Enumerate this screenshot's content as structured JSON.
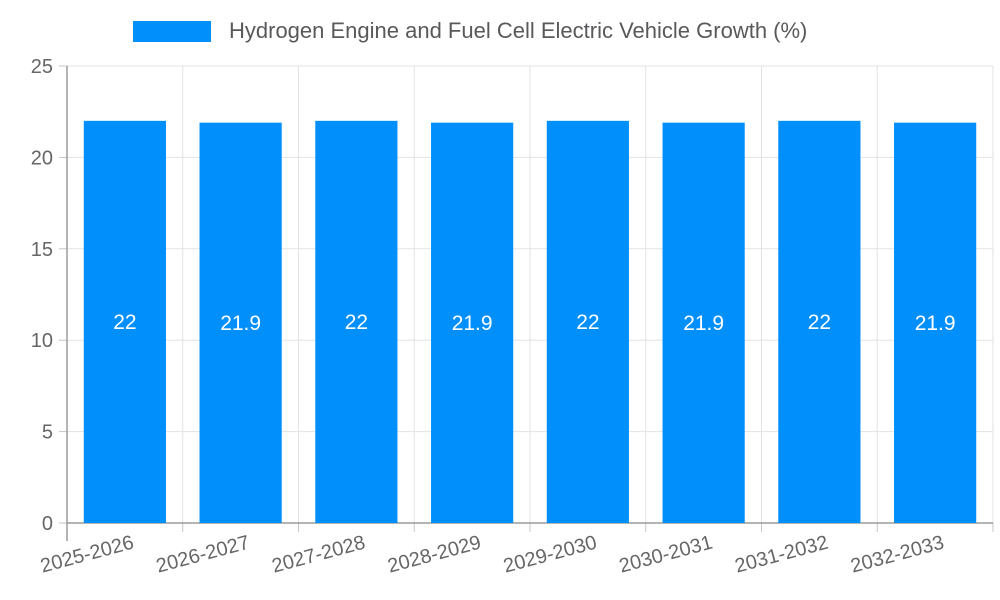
{
  "legend": {
    "label": "Hydrogen Engine and Fuel Cell Electric Vehicle Growth (%)",
    "swatch_color": "#008FFB",
    "position": "top"
  },
  "chart_data": {
    "type": "bar",
    "title": "Hydrogen Engine and Fuel Cell Electric Vehicle Growth (%)",
    "categories": [
      "2025-2026",
      "2026-2027",
      "2027-2028",
      "2028-2029",
      "2029-2030",
      "2030-2031",
      "2031-2032",
      "2032-2033"
    ],
    "series": [
      {
        "name": "Hydrogen Engine and Fuel Cell Electric Vehicle Growth (%)",
        "values": [
          22,
          21.9,
          22,
          21.9,
          22,
          21.9,
          22,
          21.9
        ],
        "color": "#008FFB"
      }
    ],
    "data_labels": {
      "enabled": true,
      "values": [
        "22",
        "21.9",
        "22",
        "21.9",
        "22",
        "21.9",
        "22",
        "21.9"
      ],
      "color": "#FFFFFF"
    },
    "xlabel": "",
    "ylabel": "",
    "ylim": [
      0,
      25
    ],
    "yticks": [
      0,
      5,
      10,
      15,
      20,
      25
    ],
    "grid": true,
    "legend_position": "top",
    "x_label_rotation_deg": -15
  },
  "colors": {
    "background": "#FFFFFF",
    "bar": "#008FFB",
    "grid_line": "#e3e3e3",
    "axis_line": "#9b9b9b",
    "tick_line": "#c5c5c5",
    "axis_label": "#666666",
    "legend_text": "#58595b",
    "value_label": "#FFFFFF"
  }
}
